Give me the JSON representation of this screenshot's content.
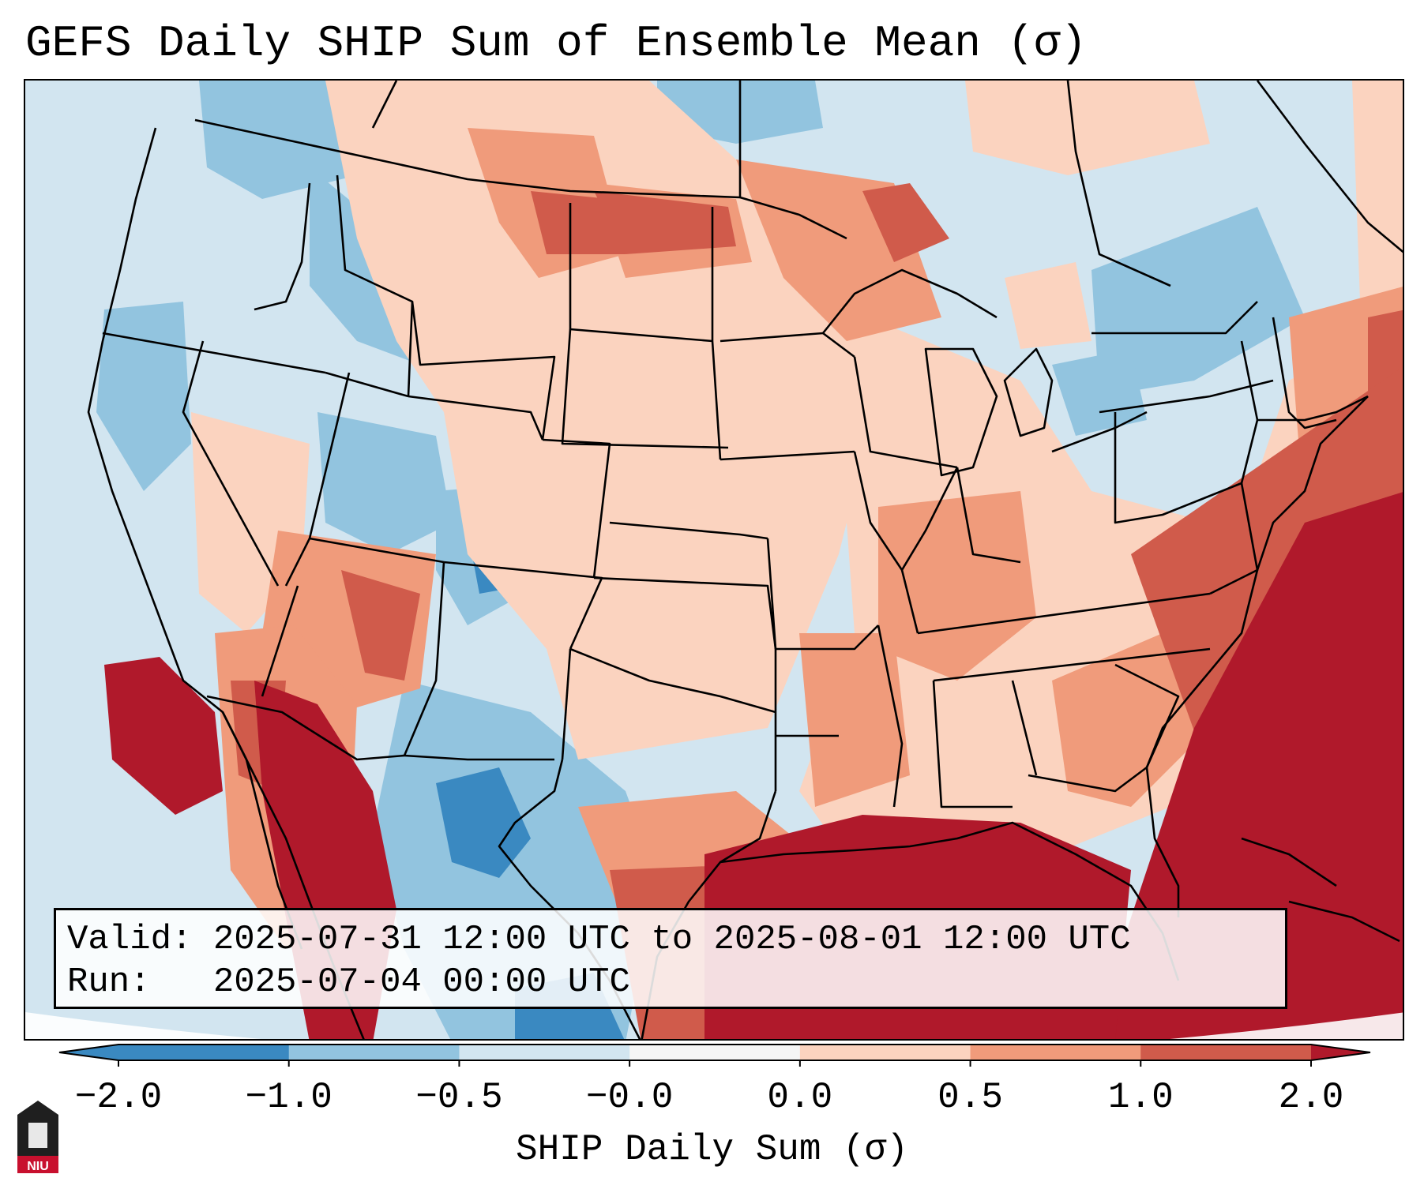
{
  "title": "GEFS Daily SHIP Sum of Ensemble Mean (σ)",
  "info": {
    "valid_line": "Valid: 2025-07-31 12:00 UTC to 2025-08-01 12:00 UTC",
    "run_line": "Run:   2025-07-04 00:00 UTC"
  },
  "colorbar": {
    "label": "SHIP Daily Sum (σ)",
    "ticks": [
      "−2.0",
      "−1.0",
      "−0.5",
      "−0.0",
      "0.0",
      "0.5",
      "1.0",
      "2.0"
    ],
    "colors": [
      "#3a89c1",
      "#92c4df",
      "#d2e5f0",
      "#f5f5f5",
      "#fbd3bf",
      "#f09b7b",
      "#d05b4b",
      "#b0192b"
    ]
  },
  "logo": {
    "text": "NIU"
  }
}
